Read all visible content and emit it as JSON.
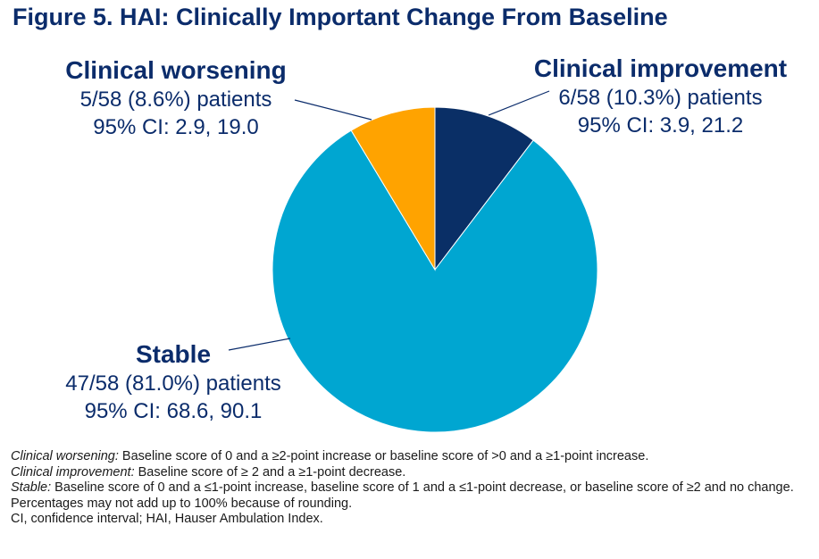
{
  "title": "Figure 5. HAI: Clinically Important Change From Baseline",
  "chart_data": {
    "type": "pie",
    "title": "Figure 5. HAI: Clinically Important Change From Baseline",
    "slices": [
      {
        "name": "Clinical improvement",
        "count": 6,
        "total": 58,
        "percent": 10.3,
        "color": "#0a2f66"
      },
      {
        "name": "Stable",
        "count": 47,
        "total": 58,
        "percent": 81.0,
        "color": "#00a6d1"
      },
      {
        "name": "Clinical worsening",
        "count": 5,
        "total": 58,
        "percent": 8.6,
        "color": "#ffa300"
      }
    ]
  },
  "labels": {
    "worsening": {
      "name": "Clinical worsening",
      "count": "5/58 (8.6%) patients",
      "ci": "95% CI: 2.9, 19.0"
    },
    "improvement": {
      "name": "Clinical improvement",
      "count": "6/58 (10.3%) patients",
      "ci": "95% CI: 3.9, 21.2"
    },
    "stable": {
      "name": "Stable",
      "count": "47/58 (81.0%) patients",
      "ci": "95% CI: 68.6, 90.1"
    }
  },
  "footnotes": {
    "worsening_term": "Clinical worsening:",
    "worsening_def": " Baseline score of 0 and a ≥2-point increase or baseline score of >0 and a ≥1-point increase.",
    "improvement_term": "Clinical improvement:",
    "improvement_def": " Baseline score of ≥ 2 and a ≥1-point decrease.",
    "stable_term": "Stable:",
    "stable_def": " Baseline score of 0 and a ≤1-point increase, baseline score of 1 and a ≤1-point decrease, or baseline score of ≥2 and no change.",
    "rounding": "Percentages may not add up to 100% because of rounding.",
    "abbreviations": "CI, confidence interval; HAI, Hauser Ambulation Index."
  }
}
